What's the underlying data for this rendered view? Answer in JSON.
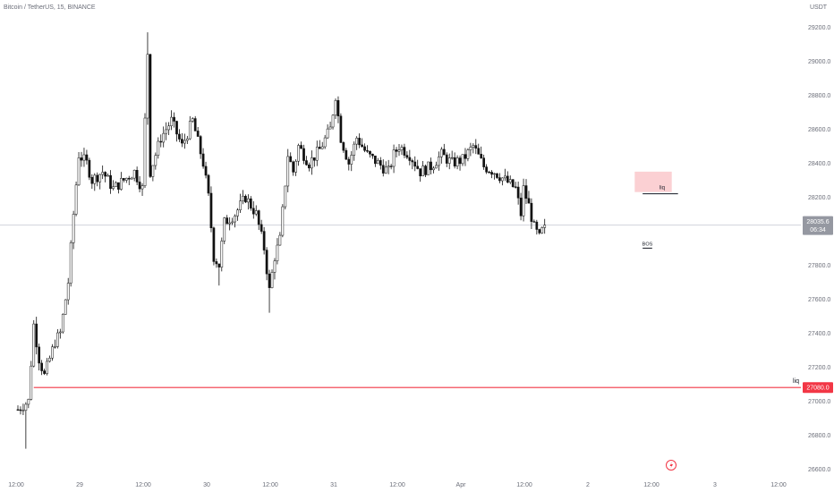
{
  "symbol_title": "Bitcoin / TetherUS, 15, BINANCE",
  "currency": "USDT",
  "colors": {
    "candle_body": "#111111",
    "candle_body_up": "#ffffff",
    "price_line": "#d0d3db",
    "liquidity_line": "#f23645",
    "zone_fill": "#fbd0d3",
    "text": "#6a6d78",
    "price_tag_bg": "#9598a1",
    "liq_tag_bg": "#f23645"
  },
  "chart_data": {
    "type": "candlestick",
    "yaxis": {
      "ticks": [
        26600,
        26800,
        27000,
        27200,
        27400,
        27600,
        27800,
        28000,
        28200,
        28400,
        28600,
        28800,
        29000,
        29200
      ],
      "tick_labels": [
        "26600.0",
        "26800.0",
        "27000.0",
        "27200.0",
        "27400.0",
        "27600.0",
        "27800.0",
        "28000.0",
        "28200.0",
        "28400.0",
        "28600.0",
        "28800.0",
        "29000.0",
        "29200.0"
      ],
      "range": [
        26560,
        29360
      ]
    },
    "xaxis": {
      "tick_labels": [
        "12:00",
        "29",
        "12:00",
        "30",
        "12:00",
        "31",
        "12:00",
        "Apr",
        "12:00",
        "2",
        "12:00",
        "3",
        "12:00"
      ],
      "tick_hours": [
        0,
        12,
        24,
        36,
        48,
        60,
        72,
        84,
        96,
        108,
        120,
        132,
        144
      ]
    },
    "current_price": {
      "label": "28035.6",
      "countdown": "06:34",
      "value": 28035.6
    },
    "liquidity_level": {
      "label": "liq",
      "value": 27080.0,
      "tag": "27080.0",
      "from_hour": 3
    },
    "supply_zone": {
      "from_hour": 116.5,
      "to_hour": 123.5,
      "high": 28350,
      "low": 28230
    },
    "liq_level_upper": {
      "label": "liq",
      "value": 28220,
      "from_hour": 118,
      "to_hour": 124
    },
    "bos": {
      "label": "BOS",
      "value": 27900,
      "from_hour": 118,
      "to_hour": 119.8
    },
    "waypoints": [
      [
        0,
        26950
      ],
      [
        2,
        27000
      ],
      [
        3,
        27450
      ],
      [
        4,
        27250
      ],
      [
        5,
        27150
      ],
      [
        7,
        27350
      ],
      [
        8,
        27400
      ],
      [
        9.5,
        27700
      ],
      [
        10.5,
        28100
      ],
      [
        11.5,
        28450
      ],
      [
        13,
        28400
      ],
      [
        14,
        28300
      ],
      [
        16,
        28350
      ],
      [
        18,
        28250
      ],
      [
        20,
        28300
      ],
      [
        22,
        28350
      ],
      [
        23.5,
        28250
      ],
      [
        24.5,
        29050
      ],
      [
        25,
        28350
      ],
      [
        27,
        28550
      ],
      [
        29,
        28650
      ],
      [
        31,
        28500
      ],
      [
        33,
        28650
      ],
      [
        35,
        28400
      ],
      [
        36,
        28200
      ],
      [
        37,
        27850
      ],
      [
        38,
        27800
      ],
      [
        39,
        28050
      ],
      [
        41,
        28100
      ],
      [
        43,
        28200
      ],
      [
        45,
        28100
      ],
      [
        46.5,
        27900
      ],
      [
        47.5,
        27650
      ],
      [
        48.5,
        27850
      ],
      [
        49.5,
        27950
      ],
      [
        51,
        28450
      ],
      [
        52,
        28350
      ],
      [
        53,
        28500
      ],
      [
        55,
        28400
      ],
      [
        57,
        28480
      ],
      [
        59,
        28600
      ],
      [
        60,
        28800
      ],
      [
        61,
        28550
      ],
      [
        62.5,
        28400
      ],
      [
        64,
        28550
      ],
      [
        66,
        28450
      ],
      [
        68,
        28400
      ],
      [
        70,
        28350
      ],
      [
        71,
        28450
      ],
      [
        72,
        28500
      ],
      [
        74,
        28450
      ],
      [
        76,
        28350
      ],
      [
        78,
        28380
      ],
      [
        80,
        28450
      ],
      [
        82,
        28400
      ],
      [
        84,
        28420
      ],
      [
        86,
        28500
      ],
      [
        88,
        28380
      ],
      [
        90,
        28350
      ],
      [
        92,
        28300
      ],
      [
        94,
        28250
      ],
      [
        95,
        28100
      ],
      [
        95.5,
        28250
      ],
      [
        96.5,
        28150
      ],
      [
        97.5,
        28020
      ],
      [
        98.5,
        27960
      ],
      [
        99,
        28000
      ],
      [
        99.5,
        28035.6
      ]
    ]
  }
}
